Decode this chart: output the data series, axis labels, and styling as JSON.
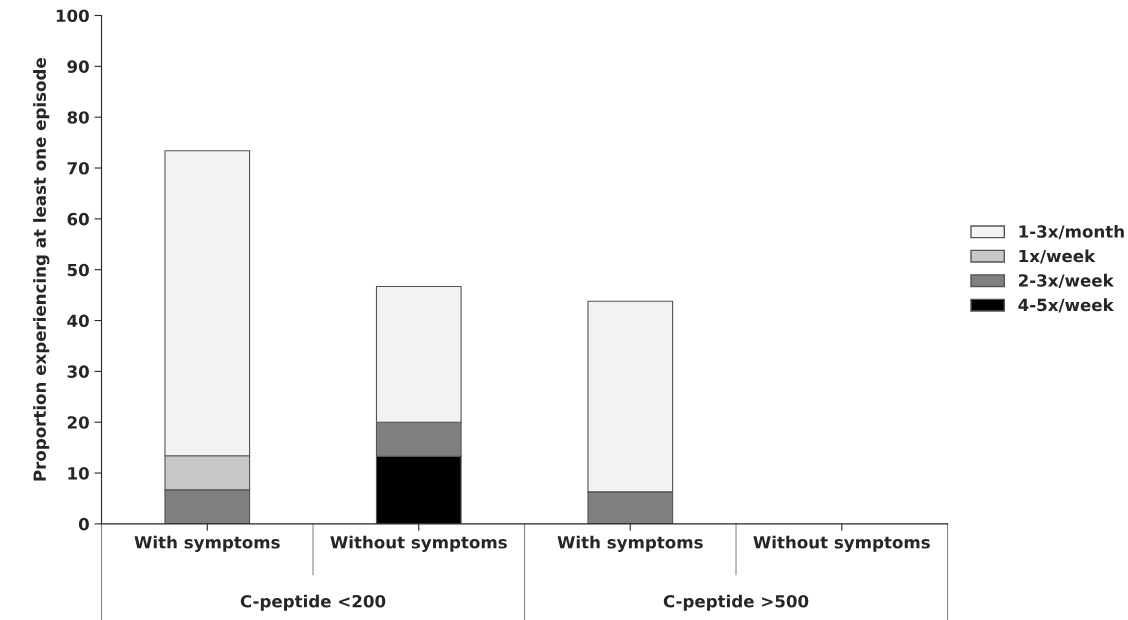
{
  "chart_data": {
    "type": "bar",
    "stacked": true,
    "ylabel": "Proportion experiencing at least one episode",
    "categories": [
      "With symptoms",
      "Without symptoms",
      "With symptoms",
      "Without symptoms"
    ],
    "annotations": [
      "C-peptide <200",
      "C-peptide >500"
    ],
    "series": [
      {
        "name": "4-5x/week",
        "color": "#000000",
        "values": [
          null,
          13.3,
          null,
          null
        ]
      },
      {
        "name": "2-3x/week",
        "color": "#808080",
        "values": [
          6.7,
          6.7,
          6.3,
          null
        ]
      },
      {
        "name": "1x/week",
        "color": "#c8c8c8",
        "values": [
          6.7,
          null,
          null,
          null
        ]
      },
      {
        "name": "1-3x/month",
        "color": "#f2f2f2",
        "values": [
          60,
          26.7,
          37.5,
          null
        ]
      }
    ],
    "ylim": [
      0,
      100
    ],
    "yticks": [
      0,
      10,
      20,
      30,
      40,
      50,
      60,
      70,
      80,
      90,
      100
    ],
    "grid": false,
    "legend": "right"
  }
}
